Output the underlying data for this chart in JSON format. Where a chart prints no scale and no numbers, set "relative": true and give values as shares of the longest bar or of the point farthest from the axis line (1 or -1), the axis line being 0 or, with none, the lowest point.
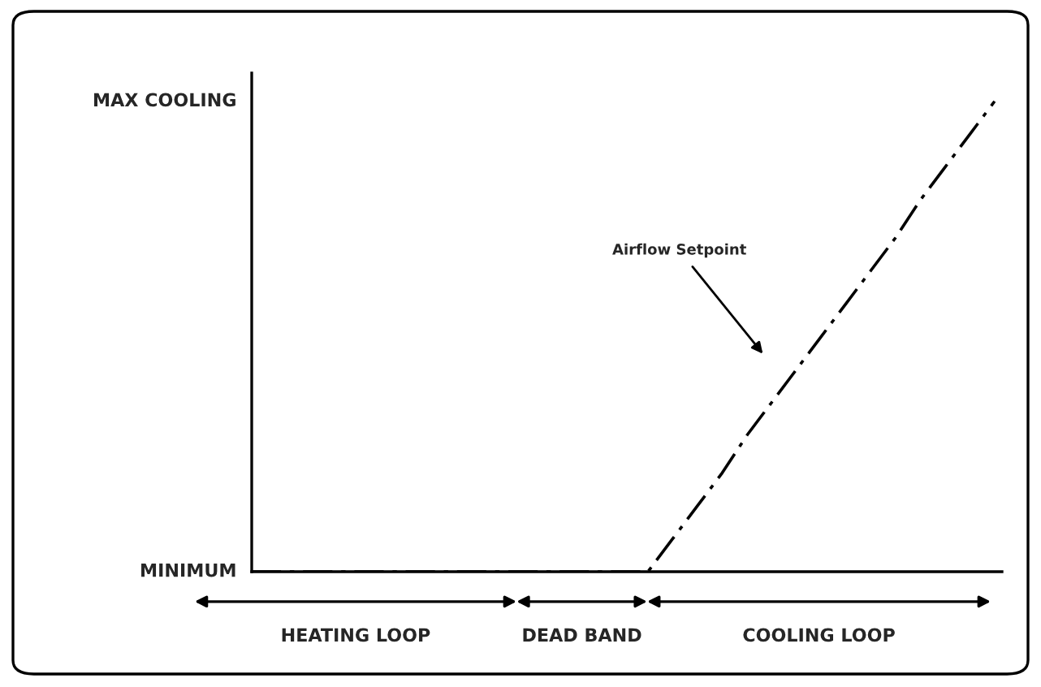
{
  "chart_data": {
    "type": "line",
    "categories": [
      null,
      null,
      null,
      null,
      null,
      null,
      null,
      null,
      null,
      null,
      null,
      null,
      null,
      null,
      null,
      null,
      null,
      null,
      null,
      null,
      null,
      null,
      null,
      null,
      null,
      null,
      null,
      null,
      null,
      null,
      null
    ],
    "series": [
      {
        "color": "#000000",
        "values": [
          0,
          0,
          0,
          0,
          0,
          0,
          0,
          0,
          0,
          0,
          0,
          0,
          0,
          0,
          0,
          0,
          0,
          0.07,
          0.14,
          0.21,
          0.29,
          0.36,
          0.43,
          0.5,
          0.57,
          0.64,
          0.71,
          0.79,
          0.86,
          0.93,
          1
        ]
      }
    ],
    "relative": true,
    "line_style": "dashed",
    "marker": "none",
    "grid": false,
    "legend": false,
    "annotations": [
      "Airflow Setpoint",
      "HEATING LOOP",
      "DEAD BAND",
      "COOLING LOOP",
      "MINIMUM",
      "MAX COOLING"
    ]
  }
}
